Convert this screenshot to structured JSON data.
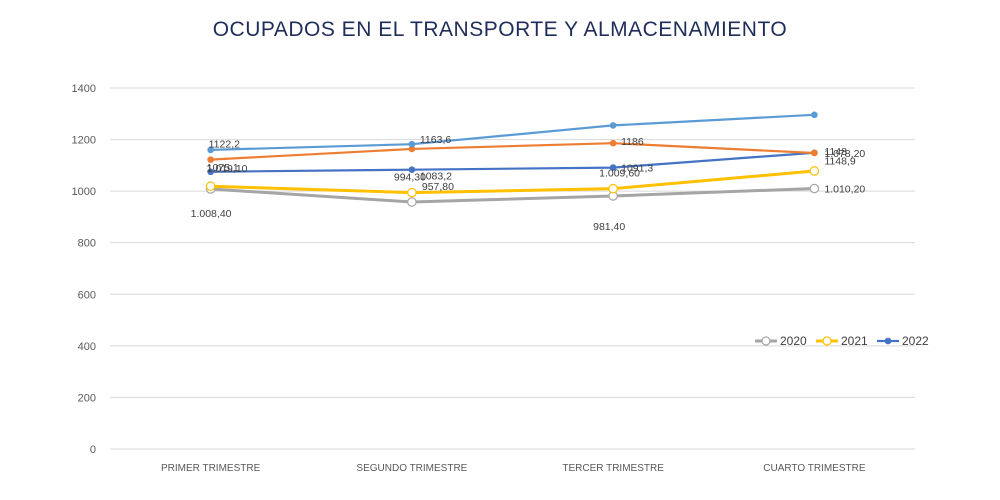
{
  "chart_data": {
    "type": "line",
    "title": "OCUPADOS EN EL TRANSPORTE Y ALMACENAMIENTO",
    "categories": [
      "PRIMER TRIMESTRE",
      "SEGUNDO TRIMESTRE",
      "TERCER TRIMESTRE",
      "CUARTO TRIMESTRE"
    ],
    "ylim": [
      0,
      1400
    ],
    "yticks": [
      "0",
      "200",
      "400",
      "600",
      "800",
      "1000",
      "1200",
      "1400"
    ],
    "grid": true,
    "legend_position": "right",
    "series": [
      {
        "name": "2020",
        "color": "#a5a5a5",
        "marker": "open",
        "values": [
          1008.4,
          957.8,
          981.4,
          1010.2
        ],
        "labels": [
          "1.008,40",
          "957,80",
          "981,40",
          "1.010,20"
        ]
      },
      {
        "name": "2021",
        "color": "#ffc000",
        "marker": "open",
        "values": [
          1019.1,
          994.3,
          1009.6,
          1078.2
        ],
        "labels": [
          "1.019,10",
          "994,30",
          "1.009,60",
          "1.078,20"
        ]
      },
      {
        "name": "2022",
        "color": "#4472c4",
        "marker": "filled",
        "values": [
          1075.1,
          1083.2,
          1091.3,
          1148.9
        ],
        "labels": [
          "1075,1",
          "1083,2",
          "1091,3",
          "1148,9"
        ]
      },
      {
        "name": "",
        "color": "#ed7d31",
        "marker": "filled",
        "values": [
          1122.2,
          1163.6,
          1186,
          1148
        ],
        "labels": [
          "1122,2",
          "1163,6",
          "1186",
          "1148"
        ]
      },
      {
        "name": "",
        "color": "#5b9bd5",
        "marker": "filled",
        "values": [
          1160,
          1182,
          1255,
          1296
        ],
        "labels": [
          "",
          "",
          "",
          ""
        ]
      }
    ]
  }
}
